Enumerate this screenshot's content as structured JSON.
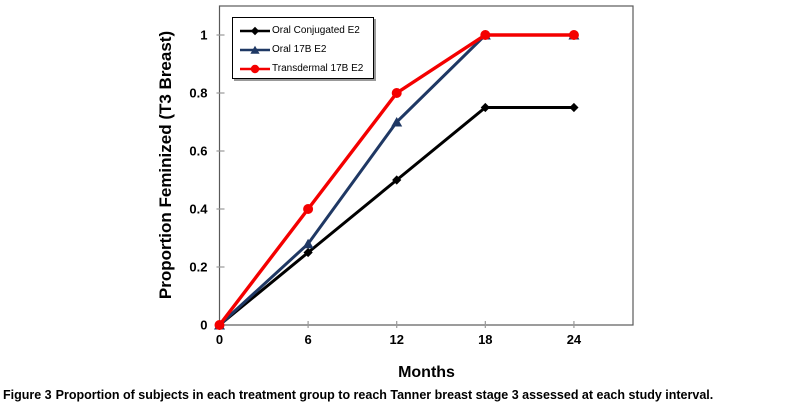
{
  "figure": {
    "caption_label": "Figure 3",
    "caption_text": "Proportion of subjects in each treatment group to reach Tanner breast stage 3 assessed at each study interval."
  },
  "chart_data": {
    "type": "line",
    "title": "",
    "xlabel": "Months",
    "ylabel": "Proportion Feminized (T3 Breast)",
    "x": [
      0,
      6,
      12,
      18,
      24
    ],
    "xticks": {
      "values": [
        0,
        6,
        12,
        18,
        24
      ],
      "labels": [
        "0",
        "6",
        "12",
        "18",
        "24"
      ]
    },
    "yticks": {
      "values": [
        0,
        0.2,
        0.4,
        0.6,
        0.8,
        1
      ],
      "labels": [
        "0",
        "0.2",
        "0.4",
        "0.6",
        "0.8",
        "1"
      ]
    },
    "xlim": [
      0,
      28
    ],
    "ylim": [
      0,
      1.1
    ],
    "grid": false,
    "legend_position": "top-left-inside",
    "axis_color": "#595959",
    "tick_color": "#999999",
    "series": [
      {
        "name": "Oral Conjugated E2",
        "color": "#000000",
        "marker": "diamond",
        "marker_size": 4.6,
        "line_width": 3,
        "values": [
          0,
          0.25,
          0.5,
          0.75,
          0.75
        ]
      },
      {
        "name": "Oral 17B E2",
        "color": "#1F3864",
        "marker": "triangle",
        "marker_size": 5,
        "line_width": 3,
        "values": [
          0,
          0.28,
          0.7,
          1.0,
          1.0
        ]
      },
      {
        "name": "Transdermal 17B E2",
        "color": "#F40000",
        "marker": "circle",
        "marker_size": 5,
        "line_width": 3.4,
        "values": [
          0,
          0.4,
          0.8,
          1.0,
          1.0
        ]
      }
    ]
  }
}
